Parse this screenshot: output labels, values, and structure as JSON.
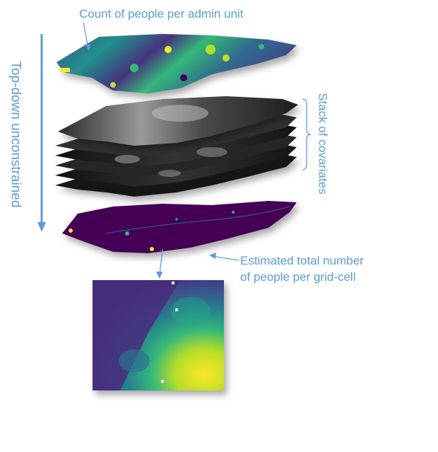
{
  "labels": {
    "top_layer": "Count of people per admin unit",
    "covariates": "Stack of covariates",
    "bottom_layer_line1": "Estimated total number",
    "bottom_layer_line2": "of people per grid-cell",
    "direction": "Top-down unconstrained"
  },
  "colors": {
    "label_blue": "#5b9bd5",
    "viridis_dark": "#440154",
    "viridis_mid": "#21908d",
    "viridis_light": "#fde725"
  }
}
